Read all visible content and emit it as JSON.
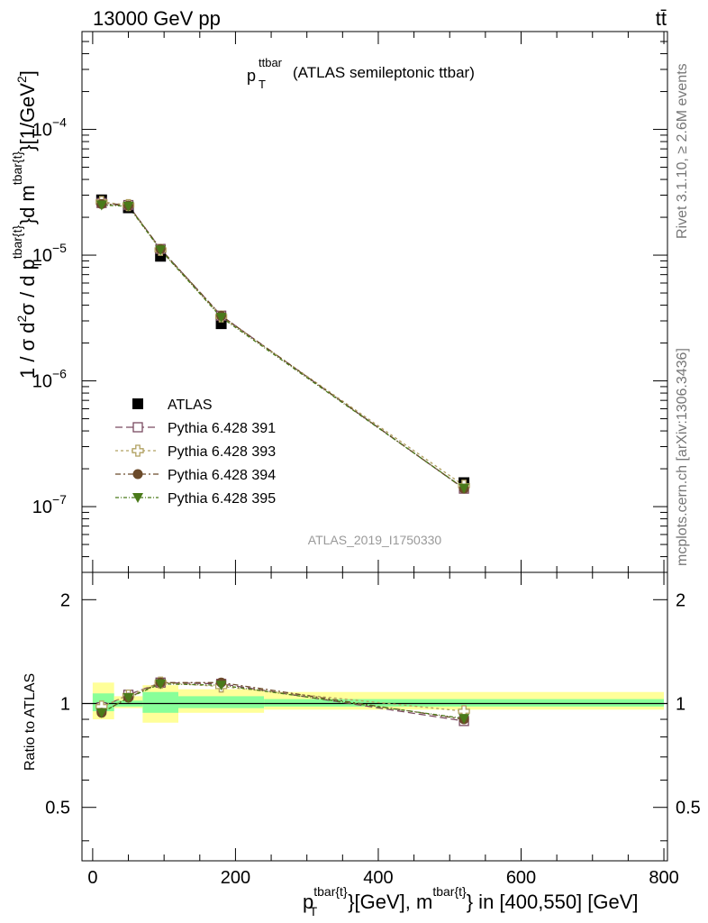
{
  "header": {
    "left": "13000 GeV pp",
    "right": "tt̄"
  },
  "title": {
    "main": "p",
    "sup": "ttbar",
    "sub": "T",
    "rest": "(ATLAS semileptonic ttbar)"
  },
  "side_labels": {
    "rivet": "Rivet 3.1.10, ≥ 2.6M events",
    "mcplots": "mcplots.cern.ch [arXiv:1306.3436]"
  },
  "watermark": "ATLAS_2019_I1750330",
  "axes": {
    "upper_ylabel": "1 / σ d²σ / d p_T^{tbar{t}}d m^{tbar{t}}[1/GeV²]",
    "upper_ylabel_parts": {
      "a": "1 / σ d",
      "b": "2",
      "c": "σ / d p",
      "d": "tbar{t}",
      "e": "T",
      "f": "}d m",
      "g": "tbar{t}",
      "h": "}[1/GeV",
      "i": "2",
      "j": "]"
    },
    "lower_ylabel": "Ratio to ATLAS",
    "xlabel_parts": {
      "a": "p",
      "b": "tbar{t}",
      "c": "T",
      "d": "}[GeV], m",
      "e": "tbar{t}",
      "f": "} in [400,550] [GeV]"
    },
    "x_ticks": [
      "0",
      "200",
      "400",
      "600",
      "800"
    ],
    "upper_y_ticks": [
      {
        "base": "10",
        "exp": "−4",
        "value": 0.0001
      },
      {
        "base": "10",
        "exp": "−5",
        "value": 1e-05
      },
      {
        "base": "10",
        "exp": "−6",
        "value": 1e-06
      },
      {
        "base": "10",
        "exp": "−7",
        "value": 1e-07
      }
    ],
    "lower_y_ticks": [
      "0.5",
      "1",
      "2"
    ]
  },
  "legend": {
    "atlas": "ATLAS",
    "p391": "Pythia 6.428 391",
    "p393": "Pythia 6.428 393",
    "p394": "Pythia 6.428 394",
    "p395": "Pythia 6.428 395"
  },
  "colors": {
    "atlas": "#000000",
    "p391": "#7a4a60",
    "p393": "#b0a060",
    "p394": "#6b4a2a",
    "p395": "#4a7a1a",
    "band_outer": "#ffff99",
    "band_inner": "#88ff99"
  },
  "chart_data": {
    "type": "scatter",
    "xlim": [
      -15,
      805
    ],
    "upper": {
      "log_y": true,
      "ylim": [
        3e-08,
        0.0006
      ]
    },
    "lower": {
      "log_y": true,
      "ylim": [
        0.35,
        2.4
      ]
    },
    "x": [
      12.5,
      50,
      95,
      180,
      520
    ],
    "x_bins": [
      [
        0,
        30
      ],
      [
        30,
        70
      ],
      [
        70,
        120
      ],
      [
        120,
        240
      ],
      [
        240,
        800
      ]
    ],
    "series": [
      {
        "name": "ATLAS",
        "key": "atlas",
        "values": [
          2.75e-05,
          2.38e-05,
          9.8e-06,
          2.85e-06,
          1.55e-07
        ],
        "marker": "square"
      },
      {
        "name": "Pythia 6.428 391",
        "key": "p391",
        "values": [
          2.6e-05,
          2.5e-05,
          1.12e-05,
          3.3e-06,
          1.39e-07
        ],
        "marker": "open-square"
      },
      {
        "name": "Pythia 6.428 393",
        "key": "p393",
        "values": [
          2.65e-05,
          2.5e-05,
          1.1e-05,
          3.25e-06,
          1.47e-07
        ],
        "marker": "open-cross"
      },
      {
        "name": "Pythia 6.428 394",
        "key": "p394",
        "values": [
          2.55e-05,
          2.48e-05,
          1.12e-05,
          3.3e-06,
          1.39e-07
        ],
        "marker": "circle"
      },
      {
        "name": "Pythia 6.428 395",
        "key": "p395",
        "values": [
          2.5e-05,
          2.45e-05,
          1.1e-05,
          3.2e-06,
          1.4e-07
        ],
        "marker": "triangle-down"
      }
    ],
    "ratios": [
      {
        "key": "p391",
        "values": [
          0.975,
          1.06,
          1.15,
          1.14,
          0.89
        ]
      },
      {
        "key": "p393",
        "values": [
          0.98,
          1.055,
          1.15,
          1.12,
          0.95
        ]
      },
      {
        "key": "p394",
        "values": [
          0.94,
          1.04,
          1.15,
          1.15,
          0.9
        ]
      },
      {
        "key": "p395",
        "values": [
          0.94,
          1.04,
          1.14,
          1.13,
          0.905
        ]
      }
    ],
    "bands": [
      {
        "x": [
          0,
          30
        ],
        "outer": [
          0.9,
          1.15
        ],
        "inner": [
          0.95,
          1.07
        ]
      },
      {
        "x": [
          30,
          70
        ],
        "outer": [
          0.97,
          1.05
        ],
        "inner": [
          0.98,
          1.02
        ]
      },
      {
        "x": [
          70,
          120
        ],
        "outer": [
          0.88,
          1.13
        ],
        "inner": [
          0.94,
          1.08
        ]
      },
      {
        "x": [
          120,
          240
        ],
        "outer": [
          0.94,
          1.1
        ],
        "inner": [
          0.97,
          1.05
        ]
      },
      {
        "x": [
          240,
          800
        ],
        "outer": [
          0.96,
          1.08
        ],
        "inner": [
          0.98,
          1.03
        ]
      }
    ]
  }
}
